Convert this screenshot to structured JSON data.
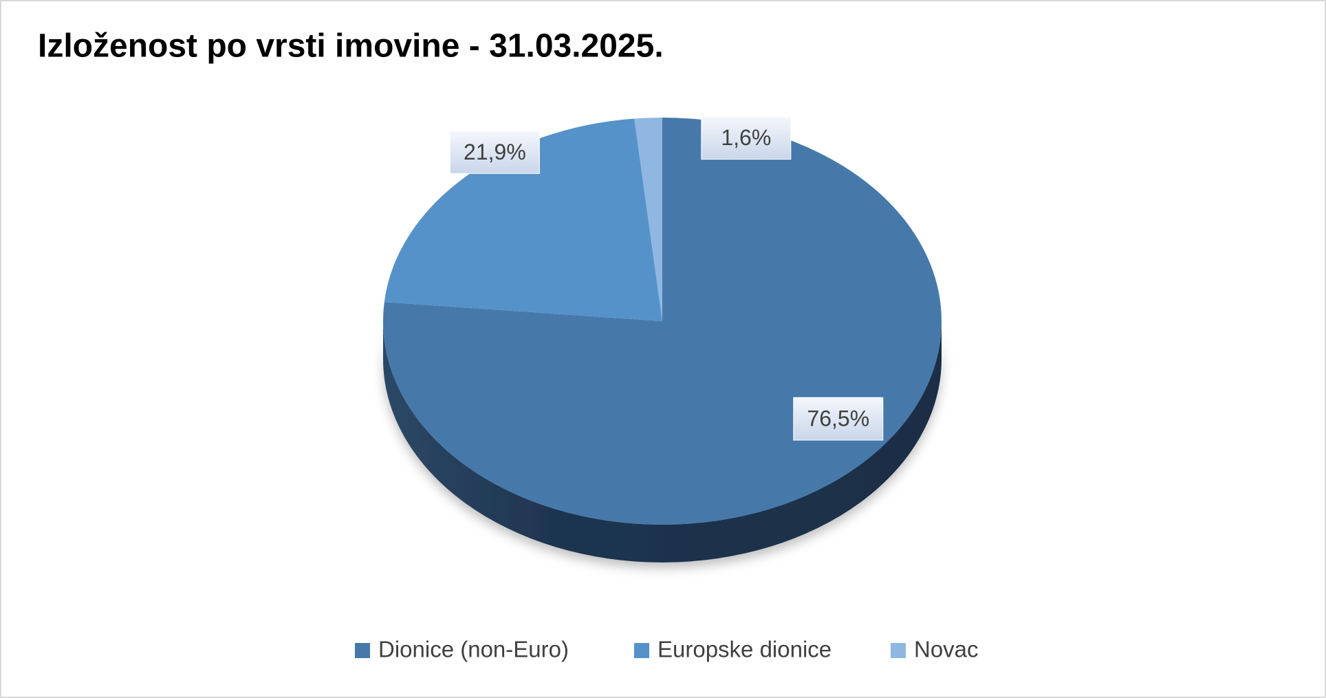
{
  "chart_data": {
    "type": "pie",
    "title": "Izloženost po vrsti imovine - 31.03.2025.",
    "categories": [
      "Dionice (non-Euro)",
      "Europske dionice",
      "Novac"
    ],
    "values": [
      76.5,
      21.9,
      1.6
    ],
    "value_labels": [
      "76,5%",
      "21,9%",
      "1,6%"
    ],
    "colors": [
      "#4679aa",
      "#5592c9",
      "#8fb7e1"
    ],
    "legend": "bottom"
  }
}
